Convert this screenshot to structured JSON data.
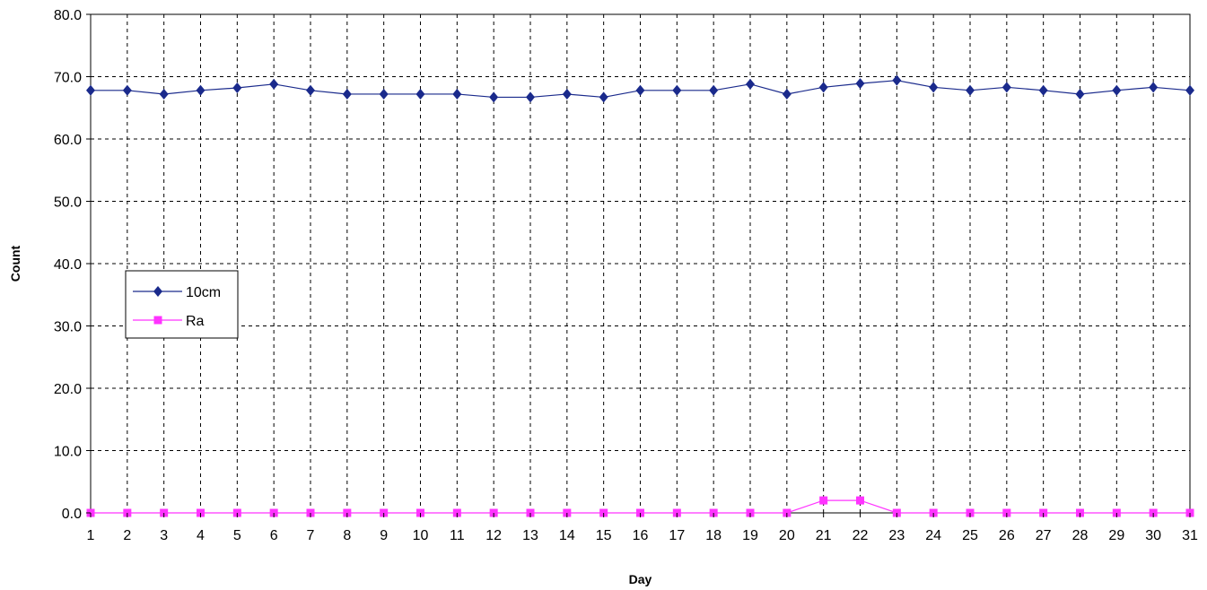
{
  "chart_data": {
    "type": "line",
    "title": "",
    "xlabel": "Day",
    "ylabel": "Count",
    "categories": [
      "1",
      "2",
      "3",
      "4",
      "5",
      "6",
      "7",
      "8",
      "9",
      "10",
      "11",
      "12",
      "13",
      "14",
      "15",
      "16",
      "17",
      "18",
      "19",
      "20",
      "21",
      "22",
      "23",
      "24",
      "25",
      "26",
      "27",
      "28",
      "29",
      "30",
      "31"
    ],
    "y_ticks": [
      "0.0",
      "10.0",
      "20.0",
      "30.0",
      "40.0",
      "50.0",
      "60.0",
      "70.0",
      "80.0"
    ],
    "ylim": [
      0,
      80
    ],
    "grid": true,
    "legend_position": "left",
    "series": [
      {
        "name": "10cm",
        "color": "#1a2a8c",
        "marker": "diamond",
        "values": [
          67.8,
          67.8,
          67.2,
          67.8,
          68.2,
          68.8,
          67.8,
          67.2,
          67.2,
          67.2,
          67.2,
          66.7,
          66.7,
          67.2,
          66.7,
          67.8,
          67.8,
          67.8,
          68.8,
          67.2,
          68.3,
          68.9,
          69.4,
          68.3,
          67.8,
          68.3,
          67.8,
          67.2,
          67.8,
          68.3,
          67.8
        ]
      },
      {
        "name": "Ra",
        "color": "#ff33ff",
        "marker": "square",
        "values": [
          0,
          0,
          0,
          0,
          0,
          0,
          0,
          0,
          0,
          0,
          0,
          0,
          0,
          0,
          0,
          0,
          0,
          0,
          0,
          0,
          2.0,
          2.0,
          0,
          0,
          0,
          0,
          0,
          0,
          0,
          0,
          0
        ]
      }
    ]
  }
}
